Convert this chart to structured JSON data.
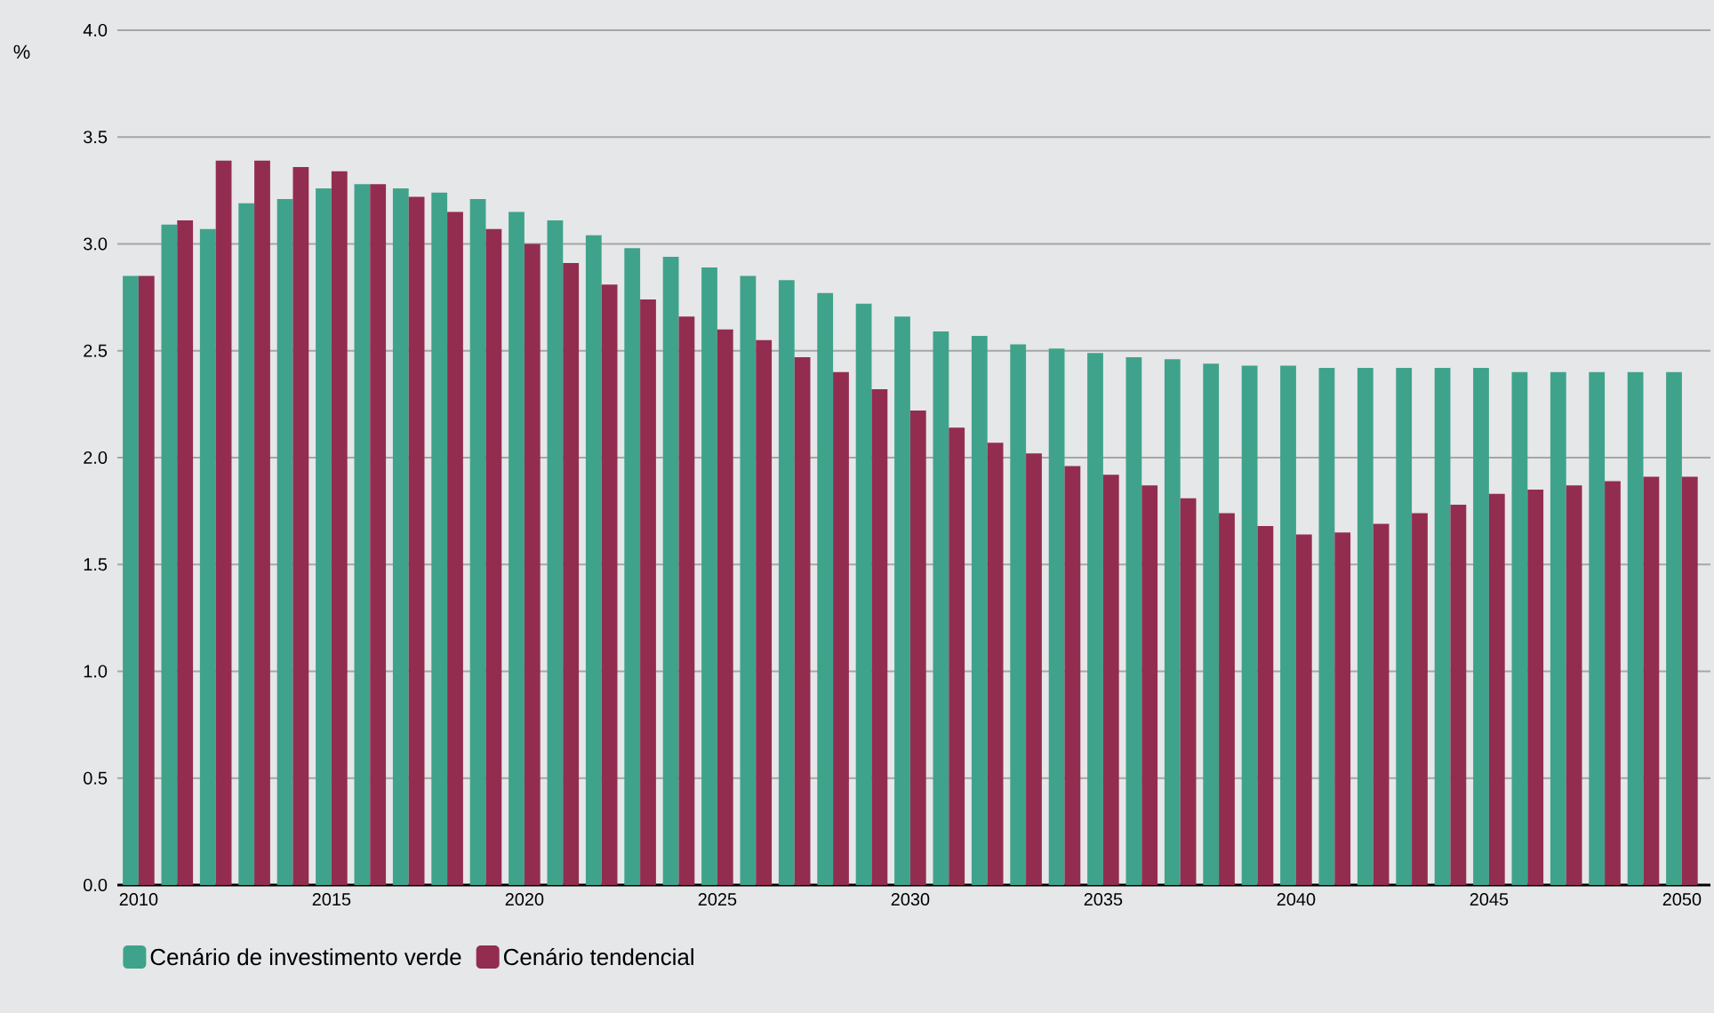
{
  "chart_data": {
    "type": "bar",
    "ylabel": "%",
    "x": [
      2010,
      2011,
      2012,
      2013,
      2014,
      2015,
      2016,
      2017,
      2018,
      2019,
      2020,
      2021,
      2022,
      2023,
      2024,
      2025,
      2026,
      2027,
      2028,
      2029,
      2030,
      2031,
      2032,
      2033,
      2034,
      2035,
      2036,
      2037,
      2038,
      2039,
      2040,
      2041,
      2042,
      2043,
      2044,
      2045,
      2046,
      2047,
      2048,
      2049,
      2050
    ],
    "series": [
      {
        "name": "Cenário de investimento verde",
        "color": "#3fa38b",
        "values": [
          2.85,
          3.09,
          3.07,
          3.19,
          3.21,
          3.26,
          3.28,
          3.26,
          3.24,
          3.21,
          3.15,
          3.11,
          3.04,
          2.98,
          2.94,
          2.89,
          2.85,
          2.83,
          2.77,
          2.72,
          2.66,
          2.59,
          2.57,
          2.53,
          2.51,
          2.49,
          2.47,
          2.46,
          2.44,
          2.43,
          2.43,
          2.42,
          2.42,
          2.42,
          2.42,
          2.42,
          2.4,
          2.4,
          2.4,
          2.4,
          2.4
        ]
      },
      {
        "name": "Cenário tendencial",
        "color": "#922d50",
        "values": [
          2.85,
          3.11,
          3.39,
          3.39,
          3.36,
          3.34,
          3.28,
          3.22,
          3.15,
          3.07,
          3.0,
          2.91,
          2.81,
          2.74,
          2.66,
          2.6,
          2.55,
          2.47,
          2.4,
          2.32,
          2.22,
          2.14,
          2.07,
          2.02,
          1.96,
          1.92,
          1.87,
          1.81,
          1.74,
          1.68,
          1.64,
          1.65,
          1.69,
          1.74,
          1.78,
          1.83,
          1.85,
          1.87,
          1.89,
          1.91,
          1.91
        ]
      }
    ],
    "xlim": [
      2009.45,
      2050.74
    ],
    "xticks": [
      2010,
      2015,
      2020,
      2025,
      2030,
      2035,
      2040,
      2045,
      2050
    ],
    "ylim": [
      0,
      4
    ],
    "yticks": [
      {
        "value": 0,
        "label": "0.0"
      },
      {
        "value": 0.5,
        "label": "0.5"
      },
      {
        "value": 1,
        "label": "1.0"
      },
      {
        "value": 1.5,
        "label": "1.5"
      },
      {
        "value": 2,
        "label": "2.0"
      },
      {
        "value": 2.5,
        "label": "2.5"
      },
      {
        "value": 3,
        "label": "3.0"
      },
      {
        "value": 3.5,
        "label": "3.5"
      },
      {
        "value": 4,
        "label": "4.0"
      }
    ],
    "grid": "y",
    "legend": "bottom left"
  }
}
